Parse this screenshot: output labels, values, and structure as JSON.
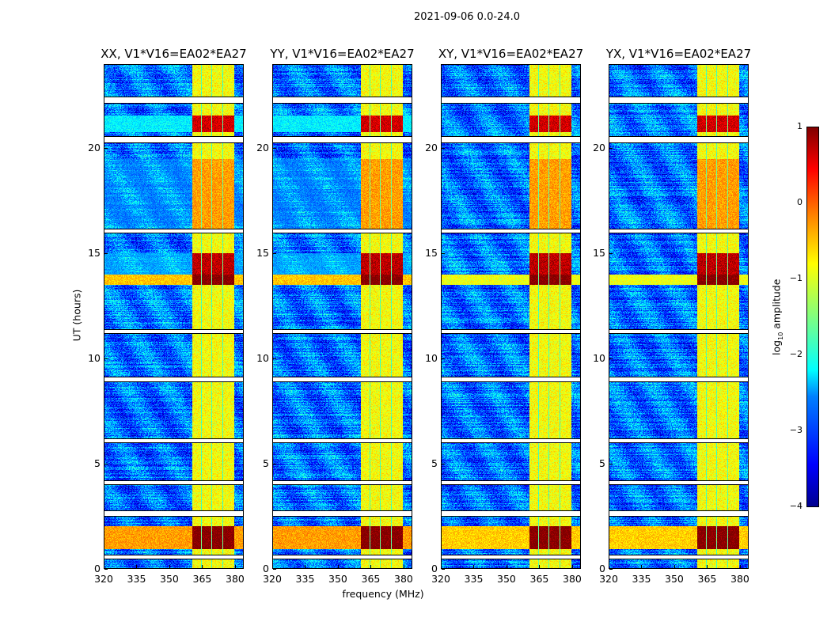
{
  "suptitle": "2021-09-06 0.0-24.0",
  "xlabel": "frequency (MHz)",
  "ylabel": "UT (hours)",
  "colorbar": {
    "label_main": "log",
    "label_sub": "10",
    "label_rest": " amplitude",
    "ticks": [
      "1",
      "0",
      "−1",
      "−2",
      "−3",
      "−4"
    ],
    "range": [
      -4,
      1
    ],
    "colormap": "jet"
  },
  "chart_data": {
    "type": "heatmap",
    "title": "2021-09-06 0.0-24.0",
    "xlabel": "frequency (MHz)",
    "ylabel": "UT (hours)",
    "xlim": [
      320,
      384
    ],
    "ylim": [
      0,
      24
    ],
    "xticks": [
      "320",
      "335",
      "350",
      "365",
      "380"
    ],
    "xtick_values": [
      320,
      335,
      350,
      365,
      380
    ],
    "yticks": [
      "0",
      "5",
      "10",
      "15",
      "20"
    ],
    "ytick_values": [
      0,
      5,
      10,
      15,
      20
    ],
    "value_label": "log10 amplitude",
    "vlim": [
      -4,
      1
    ],
    "panels": [
      {
        "title": "XX, V1*V16=EA02*EA27",
        "pol": "XX",
        "offband_strength": 1.0
      },
      {
        "title": "YY, V1*V16=EA02*EA27",
        "pol": "YY",
        "offband_strength": 1.0
      },
      {
        "title": "XY, V1*V16=EA02*EA27",
        "pol": "XY",
        "offband_strength": 0.6
      },
      {
        "title": "YX, V1*V16=EA02*EA27",
        "pol": "YX",
        "offband_strength": 0.6
      }
    ],
    "background_level": -2.8,
    "rfi_subbands_mhz": [
      [
        360.5,
        364.5
      ],
      [
        365,
        369.3
      ],
      [
        369.8,
        374.5
      ],
      [
        375,
        380
      ]
    ],
    "rfi_level": -0.9,
    "flagged_ut_ranges": [
      [
        0.45,
        0.6
      ],
      [
        2.5,
        2.7
      ],
      [
        4.0,
        4.15
      ],
      [
        6.0,
        6.15
      ],
      [
        8.9,
        9.1
      ],
      [
        11.2,
        11.35
      ],
      [
        16.0,
        16.15
      ],
      [
        20.3,
        20.55
      ],
      [
        22.2,
        22.45
      ]
    ],
    "strong_events": [
      {
        "ut": [
          0.9,
          2.0
        ],
        "band_level": 1.0,
        "offband_level": -0.4
      },
      {
        "ut": [
          13.5,
          14.0
        ],
        "band_level": 1.0,
        "offband_level": -0.6
      },
      {
        "ut": [
          14.0,
          15.0
        ],
        "band_level": 0.7,
        "offband_level": -2.6
      },
      {
        "ut": [
          20.8,
          21.6
        ],
        "band_level": 0.6,
        "offband_level": -2.2
      },
      {
        "ut": [
          16.2,
          19.5
        ],
        "band_level": -0.4,
        "offband_level": -2.8
      }
    ]
  }
}
